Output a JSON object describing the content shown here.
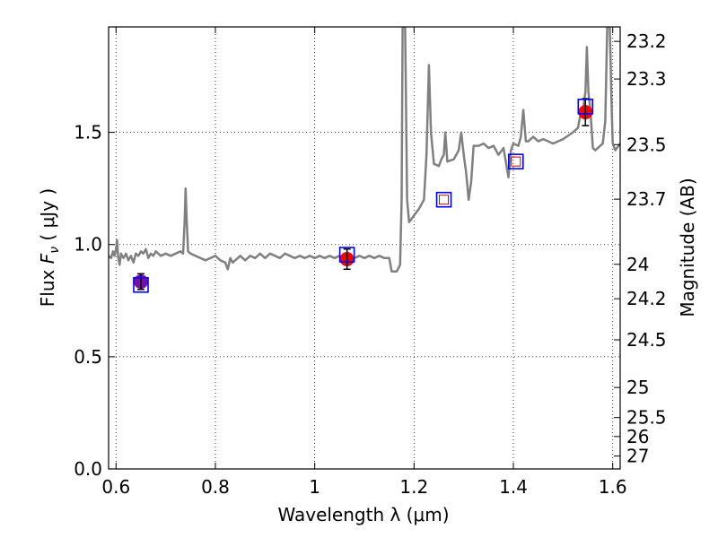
{
  "chart_data": {
    "type": "scatter",
    "title": "",
    "xlabel": "Wavelength  λ (μm)",
    "ylabel_left": {
      "pre": "Flux  ",
      "sym": "F",
      "sub": "ν",
      "post": "  ( μJy )"
    },
    "ylabel_right": "Magnitude (AB)",
    "xlim": [
      0.585,
      1.615
    ],
    "ylim": [
      0.0,
      1.97
    ],
    "grid": true,
    "x_ticks": [
      {
        "value": 0.6,
        "label": "0.6"
      },
      {
        "value": 0.8,
        "label": "0.8"
      },
      {
        "value": 1.0,
        "label": "1"
      },
      {
        "value": 1.2,
        "label": "1.2"
      },
      {
        "value": 1.4,
        "label": "1.4"
      },
      {
        "value": 1.6,
        "label": "1.6"
      }
    ],
    "y_ticks": [
      {
        "value": 0.0,
        "label": "0.0"
      },
      {
        "value": 0.5,
        "label": "0.5"
      },
      {
        "value": 1.0,
        "label": "1.0"
      },
      {
        "value": 1.5,
        "label": "1.5"
      }
    ],
    "magnitude_ticks": [
      {
        "value": 23.2,
        "label": "23.2"
      },
      {
        "value": 23.3,
        "label": "23.3"
      },
      {
        "value": 23.5,
        "label": "23.5"
      },
      {
        "value": 23.7,
        "label": "23.7"
      },
      {
        "value": 24.0,
        "label": "24"
      },
      {
        "value": 24.2,
        "label": "24.2"
      },
      {
        "value": 24.5,
        "label": "24.5"
      },
      {
        "value": 25.0,
        "label": "25"
      },
      {
        "value": 25.5,
        "label": "25.5"
      },
      {
        "value": 26.0,
        "label": "26"
      },
      {
        "value": 27.0,
        "label": "27"
      }
    ],
    "model_spectrum": {
      "color": "#808080",
      "points": [
        [
          0.585,
          0.95
        ],
        [
          0.59,
          0.94
        ],
        [
          0.594,
          0.97
        ],
        [
          0.597,
          0.95
        ],
        [
          0.6,
          0.98
        ],
        [
          0.602,
          1.02
        ],
        [
          0.604,
          0.95
        ],
        [
          0.607,
          0.91
        ],
        [
          0.61,
          0.96
        ],
        [
          0.615,
          0.94
        ],
        [
          0.62,
          0.96
        ],
        [
          0.625,
          0.93
        ],
        [
          0.63,
          0.95
        ],
        [
          0.635,
          0.92
        ],
        [
          0.64,
          0.96
        ],
        [
          0.645,
          0.95
        ],
        [
          0.65,
          0.97
        ],
        [
          0.655,
          0.96
        ],
        [
          0.66,
          0.98
        ],
        [
          0.665,
          0.94
        ],
        [
          0.67,
          0.96
        ],
        [
          0.675,
          0.95
        ],
        [
          0.68,
          0.97
        ],
        [
          0.69,
          0.95
        ],
        [
          0.7,
          0.96
        ],
        [
          0.71,
          0.95
        ],
        [
          0.72,
          0.96
        ],
        [
          0.73,
          0.97
        ],
        [
          0.735,
          0.96
        ],
        [
          0.738,
          1.1
        ],
        [
          0.74,
          1.25
        ],
        [
          0.742,
          1.12
        ],
        [
          0.745,
          0.97
        ],
        [
          0.75,
          0.96
        ],
        [
          0.76,
          0.95
        ],
        [
          0.77,
          0.94
        ],
        [
          0.78,
          0.93
        ],
        [
          0.79,
          0.94
        ],
        [
          0.8,
          0.95
        ],
        [
          0.81,
          0.93
        ],
        [
          0.82,
          0.92
        ],
        [
          0.825,
          0.89
        ],
        [
          0.83,
          0.94
        ],
        [
          0.835,
          0.92
        ],
        [
          0.84,
          0.93
        ],
        [
          0.85,
          0.95
        ],
        [
          0.86,
          0.93
        ],
        [
          0.87,
          0.95
        ],
        [
          0.88,
          0.94
        ],
        [
          0.89,
          0.96
        ],
        [
          0.9,
          0.94
        ],
        [
          0.91,
          0.96
        ],
        [
          0.92,
          0.95
        ],
        [
          0.93,
          0.94
        ],
        [
          0.94,
          0.96
        ],
        [
          0.95,
          0.95
        ],
        [
          0.96,
          0.94
        ],
        [
          0.97,
          0.95
        ],
        [
          0.98,
          0.94
        ],
        [
          0.99,
          0.95
        ],
        [
          1.0,
          0.94
        ],
        [
          1.01,
          0.95
        ],
        [
          1.02,
          0.94
        ],
        [
          1.03,
          0.95
        ],
        [
          1.04,
          0.94
        ],
        [
          1.05,
          0.95
        ],
        [
          1.06,
          0.94
        ],
        [
          1.07,
          0.95
        ],
        [
          1.08,
          0.94
        ],
        [
          1.09,
          0.95
        ],
        [
          1.1,
          0.94
        ],
        [
          1.11,
          0.95
        ],
        [
          1.12,
          0.94
        ],
        [
          1.13,
          0.95
        ],
        [
          1.14,
          0.94
        ],
        [
          1.15,
          0.94
        ],
        [
          1.155,
          0.88
        ],
        [
          1.165,
          0.88
        ],
        [
          1.172,
          0.91
        ],
        [
          1.175,
          1.2
        ],
        [
          1.177,
          1.97
        ],
        [
          1.182,
          1.97
        ],
        [
          1.186,
          1.2
        ],
        [
          1.19,
          1.1
        ],
        [
          1.2,
          1.13
        ],
        [
          1.21,
          1.16
        ],
        [
          1.22,
          1.2
        ],
        [
          1.225,
          1.4
        ],
        [
          1.23,
          1.8
        ],
        [
          1.234,
          1.5
        ],
        [
          1.24,
          1.36
        ],
        [
          1.25,
          1.35
        ],
        [
          1.255,
          1.38
        ],
        [
          1.26,
          1.4
        ],
        [
          1.263,
          1.5
        ],
        [
          1.267,
          1.37
        ],
        [
          1.28,
          1.38
        ],
        [
          1.29,
          1.42
        ],
        [
          1.295,
          1.5
        ],
        [
          1.3,
          1.4
        ],
        [
          1.305,
          1.32
        ],
        [
          1.31,
          1.2
        ],
        [
          1.315,
          1.28
        ],
        [
          1.32,
          1.44
        ],
        [
          1.33,
          1.44
        ],
        [
          1.34,
          1.45
        ],
        [
          1.35,
          1.43
        ],
        [
          1.36,
          1.44
        ],
        [
          1.37,
          1.4
        ],
        [
          1.38,
          1.43
        ],
        [
          1.39,
          1.3
        ],
        [
          1.395,
          1.42
        ],
        [
          1.4,
          1.45
        ],
        [
          1.41,
          1.44
        ],
        [
          1.415,
          1.48
        ],
        [
          1.42,
          1.6
        ],
        [
          1.425,
          1.46
        ],
        [
          1.43,
          1.46
        ],
        [
          1.44,
          1.48
        ],
        [
          1.45,
          1.46
        ],
        [
          1.46,
          1.47
        ],
        [
          1.47,
          1.46
        ],
        [
          1.48,
          1.45
        ],
        [
          1.5,
          1.47
        ],
        [
          1.52,
          1.5
        ],
        [
          1.53,
          1.52
        ],
        [
          1.535,
          1.58
        ],
        [
          1.54,
          1.6
        ],
        [
          1.545,
          1.68
        ],
        [
          1.548,
          1.88
        ],
        [
          1.551,
          1.68
        ],
        [
          1.555,
          1.6
        ],
        [
          1.56,
          1.43
        ],
        [
          1.565,
          1.42
        ],
        [
          1.57,
          1.43
        ],
        [
          1.58,
          1.45
        ],
        [
          1.585,
          1.55
        ],
        [
          1.589,
          1.97
        ],
        [
          1.594,
          1.97
        ],
        [
          1.598,
          1.6
        ],
        [
          1.6,
          1.45
        ],
        [
          1.605,
          1.42
        ],
        [
          1.615,
          1.45
        ]
      ]
    },
    "observed_points": {
      "color": "#ff0000",
      "errorbar_color": "#000000",
      "points": [
        {
          "x": 0.65,
          "y": 0.835,
          "yerr": 0.035
        },
        {
          "x": 1.065,
          "y": 0.935,
          "yerr": 0.045
        },
        {
          "x": 1.545,
          "y": 1.59,
          "yerr": 0.06
        }
      ]
    },
    "model_photometry": {
      "color": "#0000ff",
      "marker": "open-square",
      "points": [
        {
          "x": 0.65,
          "y": 0.82
        },
        {
          "x": 1.065,
          "y": 0.955
        },
        {
          "x": 1.545,
          "y": 1.615
        },
        {
          "x": 1.405,
          "y": 1.37
        },
        {
          "x": 1.26,
          "y": 1.2
        }
      ]
    },
    "predicted_photometry": {
      "color": "#cc0000",
      "marker": "small-open-square",
      "points": [
        {
          "x": 1.26,
          "y": 1.2
        },
        {
          "x": 1.405,
          "y": 1.37
        }
      ]
    },
    "overlap_color": "#7a0fa8"
  }
}
